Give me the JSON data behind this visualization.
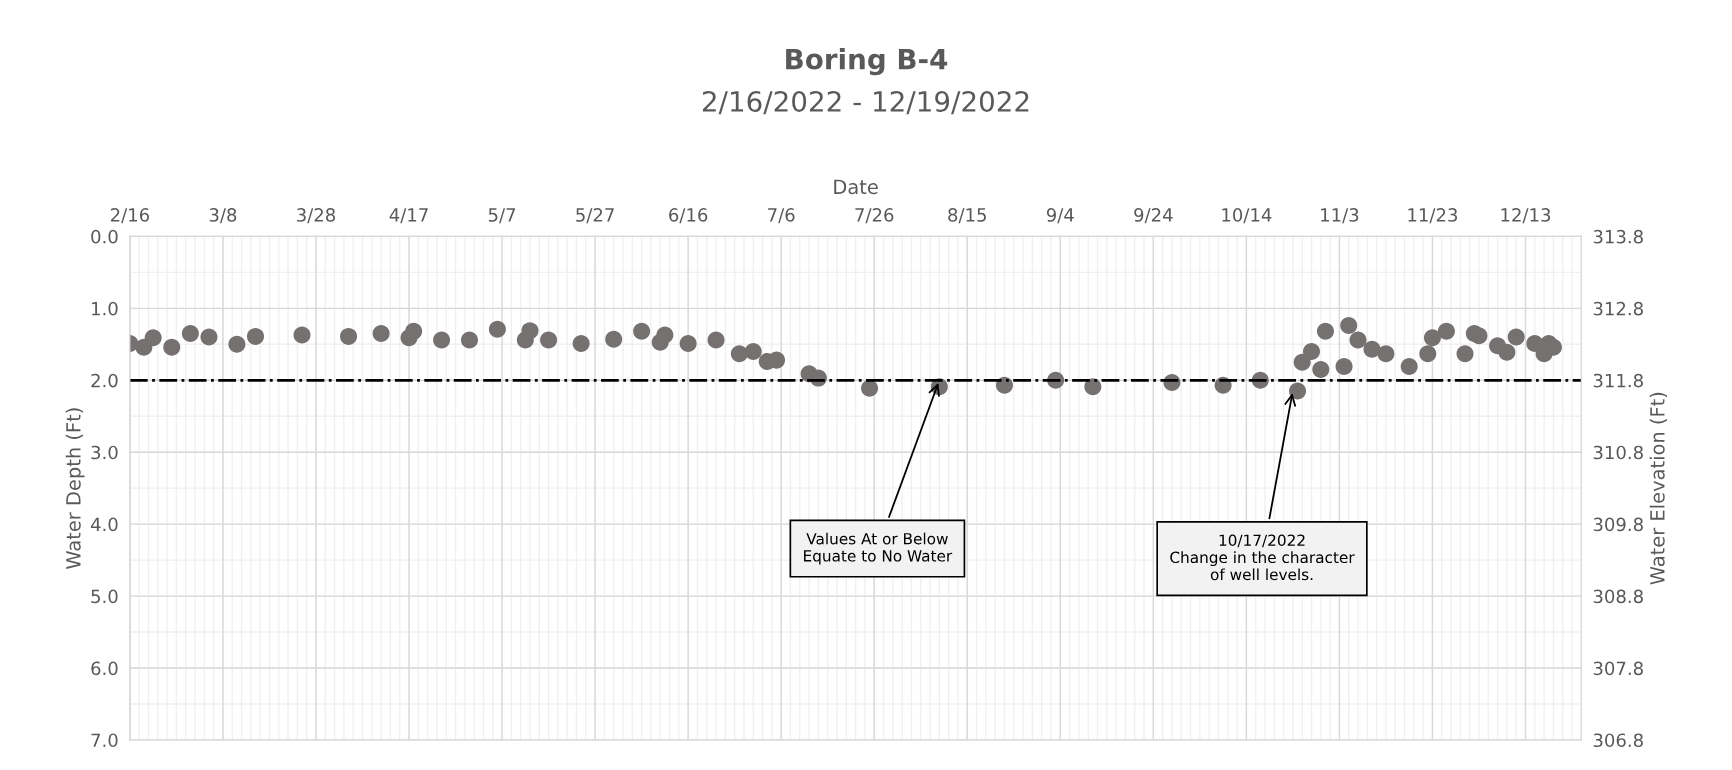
{
  "chart_data": {
    "type": "scatter",
    "title": "Boring B-4",
    "subtitle": "2/16/2022 - 12/19/2022",
    "xlabel": "Date",
    "ylabel": "Water Depth (Ft)",
    "y2label": "Water Elevation (Ft)",
    "x": [
      "2022-02-16",
      "2022-02-19",
      "2022-02-21",
      "2022-02-25",
      "2022-03-01",
      "2022-03-05",
      "2022-03-11",
      "2022-03-15",
      "2022-03-25",
      "2022-04-04",
      "2022-04-11",
      "2022-04-17",
      "2022-04-18",
      "2022-04-24",
      "2022-04-30",
      "2022-05-06",
      "2022-05-12",
      "2022-05-13",
      "2022-05-17",
      "2022-05-24",
      "2022-05-31",
      "2022-06-06",
      "2022-06-10",
      "2022-06-11",
      "2022-06-16",
      "2022-06-22",
      "2022-06-27",
      "2022-06-30",
      "2022-07-03",
      "2022-07-05",
      "2022-07-12",
      "2022-07-14",
      "2022-07-25",
      "2022-08-09",
      "2022-08-23",
      "2022-09-03",
      "2022-09-11",
      "2022-09-28",
      "2022-10-09",
      "2022-10-17",
      "2022-10-25",
      "2022-10-26",
      "2022-10-28",
      "2022-10-30",
      "2022-10-31",
      "2022-11-04",
      "2022-11-05",
      "2022-11-07",
      "2022-11-10",
      "2022-11-13",
      "2022-11-18",
      "2022-11-22",
      "2022-11-23",
      "2022-11-26",
      "2022-11-30",
      "2022-12-02",
      "2022-12-03",
      "2022-12-07",
      "2022-12-09",
      "2022-12-11",
      "2022-12-15",
      "2022-12-17",
      "2022-12-18",
      "2022-12-19"
    ],
    "series": [
      {
        "color": "#767171",
        "values": [
          1.49,
          1.54,
          1.41,
          1.54,
          1.35,
          1.4,
          1.5,
          1.39,
          1.37,
          1.39,
          1.35,
          1.41,
          1.32,
          1.44,
          1.44,
          1.29,
          1.44,
          1.31,
          1.44,
          1.49,
          1.43,
          1.32,
          1.47,
          1.37,
          1.49,
          1.44,
          1.63,
          1.6,
          1.74,
          1.72,
          1.91,
          1.97,
          2.11,
          2.09,
          2.07,
          2.0,
          2.09,
          2.03,
          2.07,
          2.0,
          2.15,
          1.75,
          1.6,
          1.85,
          1.32,
          1.81,
          1.24,
          1.44,
          1.57,
          1.63,
          1.81,
          1.63,
          1.41,
          1.32,
          1.63,
          1.35,
          1.38,
          1.52,
          1.61,
          1.4,
          1.49,
          1.63,
          1.49,
          1.54
        ]
      }
    ],
    "marker": "circle",
    "xlim": [
      "2022-02-16",
      "2022-12-25"
    ],
    "xticks": [
      {
        "value": "2022-02-16",
        "label": "2/16"
      },
      {
        "value": "2022-03-08",
        "label": "3/8"
      },
      {
        "value": "2022-03-28",
        "label": "3/28"
      },
      {
        "value": "2022-04-17",
        "label": "4/17"
      },
      {
        "value": "2022-05-07",
        "label": "5/7"
      },
      {
        "value": "2022-05-27",
        "label": "5/27"
      },
      {
        "value": "2022-06-16",
        "label": "6/16"
      },
      {
        "value": "2022-07-06",
        "label": "7/6"
      },
      {
        "value": "2022-07-26",
        "label": "7/26"
      },
      {
        "value": "2022-08-15",
        "label": "8/15"
      },
      {
        "value": "2022-09-04",
        "label": "9/4"
      },
      {
        "value": "2022-09-24",
        "label": "9/24"
      },
      {
        "value": "2022-10-14",
        "label": "10/14"
      },
      {
        "value": "2022-11-03",
        "label": "11/3"
      },
      {
        "value": "2022-11-23",
        "label": "11/23"
      },
      {
        "value": "2022-12-13",
        "label": "12/13"
      }
    ],
    "ylim": [
      7.0,
      0.0
    ],
    "yticks": [
      {
        "value": 0,
        "label": "0.0"
      },
      {
        "value": 1,
        "label": "1.0"
      },
      {
        "value": 2,
        "label": "2.0"
      },
      {
        "value": 3,
        "label": "3.0"
      },
      {
        "value": 4,
        "label": "4.0"
      },
      {
        "value": 5,
        "label": "5.0"
      },
      {
        "value": 6,
        "label": "6.0"
      },
      {
        "value": 7,
        "label": "7.0"
      }
    ],
    "y2lim": [
      306.8,
      313.8
    ],
    "y2ticks": [
      313.8,
      312.8,
      311.8,
      310.8,
      309.8,
      308.8,
      307.8,
      306.8
    ],
    "ref_lines": [
      {
        "axis": "y",
        "value": 2.0,
        "color": "#000000",
        "line_style": "dashdot"
      }
    ],
    "annotations": [
      {
        "text": "Values At or Below\nEquate to No Water",
        "x": "2022-08-09",
        "y": 2.0
      },
      {
        "text": "10/17/2022\nChange in the character\nof well levels.",
        "x": "2022-10-24",
        "y": 2.14
      }
    ],
    "grid": true
  }
}
